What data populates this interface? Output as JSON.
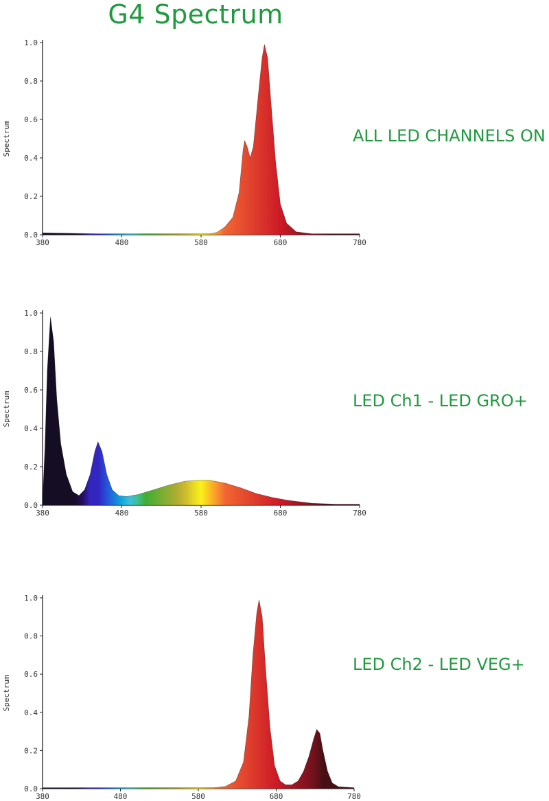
{
  "title": "G4 Spectrum",
  "chart_data": [
    {
      "type": "area",
      "caption": "ALL LED CHANNELS ON",
      "ylabel": "Spectrum",
      "xlabel": "",
      "xlim": [
        380,
        780
      ],
      "ylim": [
        0,
        1.0
      ],
      "x_ticks": [
        "380",
        "480",
        "580",
        "680",
        "780"
      ],
      "y_ticks": [
        "0.0",
        "0.2",
        "0.4",
        "0.6",
        "0.8",
        "1.0"
      ],
      "fill": "wavelength",
      "points": [
        [
          380,
          0.01
        ],
        [
          450,
          0.005
        ],
        [
          550,
          0.005
        ],
        [
          590,
          0.005
        ],
        [
          600,
          0.012
        ],
        [
          610,
          0.04
        ],
        [
          620,
          0.09
        ],
        [
          628,
          0.22
        ],
        [
          633,
          0.44
        ],
        [
          635,
          0.49
        ],
        [
          638,
          0.46
        ],
        [
          642,
          0.4
        ],
        [
          646,
          0.46
        ],
        [
          652,
          0.72
        ],
        [
          657,
          0.92
        ],
        [
          660,
          0.99
        ],
        [
          664,
          0.92
        ],
        [
          668,
          0.7
        ],
        [
          674,
          0.38
        ],
        [
          680,
          0.16
        ],
        [
          688,
          0.06
        ],
        [
          700,
          0.015
        ],
        [
          720,
          0.005
        ],
        [
          780,
          0.005
        ]
      ]
    },
    {
      "type": "area",
      "caption": "LED Ch1 - LED GRO+",
      "ylabel": "Spectrum",
      "xlabel": "",
      "xlim": [
        380,
        780
      ],
      "ylim": [
        0,
        1.0
      ],
      "x_ticks": [
        "380",
        "480",
        "580",
        "680",
        "780"
      ],
      "y_ticks": [
        "0.0",
        "0.2",
        "0.4",
        "0.6",
        "0.8",
        "1.0"
      ],
      "fill": "wavelength",
      "points": [
        [
          380,
          0.02
        ],
        [
          383,
          0.3
        ],
        [
          386,
          0.7
        ],
        [
          390,
          0.98
        ],
        [
          394,
          0.85
        ],
        [
          398,
          0.55
        ],
        [
          403,
          0.32
        ],
        [
          410,
          0.16
        ],
        [
          418,
          0.07
        ],
        [
          426,
          0.05
        ],
        [
          433,
          0.08
        ],
        [
          440,
          0.16
        ],
        [
          446,
          0.28
        ],
        [
          450,
          0.33
        ],
        [
          455,
          0.28
        ],
        [
          461,
          0.16
        ],
        [
          468,
          0.08
        ],
        [
          476,
          0.05
        ],
        [
          486,
          0.045
        ],
        [
          500,
          0.055
        ],
        [
          520,
          0.08
        ],
        [
          540,
          0.105
        ],
        [
          560,
          0.125
        ],
        [
          578,
          0.13
        ],
        [
          590,
          0.13
        ],
        [
          610,
          0.115
        ],
        [
          630,
          0.09
        ],
        [
          650,
          0.06
        ],
        [
          670,
          0.04
        ],
        [
          690,
          0.025
        ],
        [
          720,
          0.01
        ],
        [
          750,
          0.005
        ],
        [
          780,
          0.005
        ]
      ]
    },
    {
      "type": "area",
      "caption": "LED Ch2 - LED VEG+",
      "ylabel": "Spectrum",
      "xlabel": "",
      "xlim": [
        380,
        780
      ],
      "ylim": [
        0,
        1.0
      ],
      "x_ticks": [
        "380",
        "480",
        "580",
        "680",
        "780"
      ],
      "y_ticks": [
        "0.0",
        "0.2",
        "0.4",
        "0.6",
        "0.8",
        "1.0"
      ],
      "fill": "wavelength",
      "points": [
        [
          380,
          0.005
        ],
        [
          600,
          0.005
        ],
        [
          615,
          0.012
        ],
        [
          628,
          0.04
        ],
        [
          638,
          0.14
        ],
        [
          645,
          0.38
        ],
        [
          650,
          0.7
        ],
        [
          655,
          0.92
        ],
        [
          658,
          0.99
        ],
        [
          662,
          0.9
        ],
        [
          666,
          0.65
        ],
        [
          672,
          0.32
        ],
        [
          678,
          0.12
        ],
        [
          685,
          0.04
        ],
        [
          692,
          0.02
        ],
        [
          700,
          0.02
        ],
        [
          708,
          0.04
        ],
        [
          715,
          0.09
        ],
        [
          722,
          0.17
        ],
        [
          728,
          0.26
        ],
        [
          732,
          0.31
        ],
        [
          736,
          0.29
        ],
        [
          740,
          0.2
        ],
        [
          746,
          0.09
        ],
        [
          752,
          0.03
        ],
        [
          760,
          0.01
        ],
        [
          780,
          0.005
        ]
      ]
    }
  ]
}
